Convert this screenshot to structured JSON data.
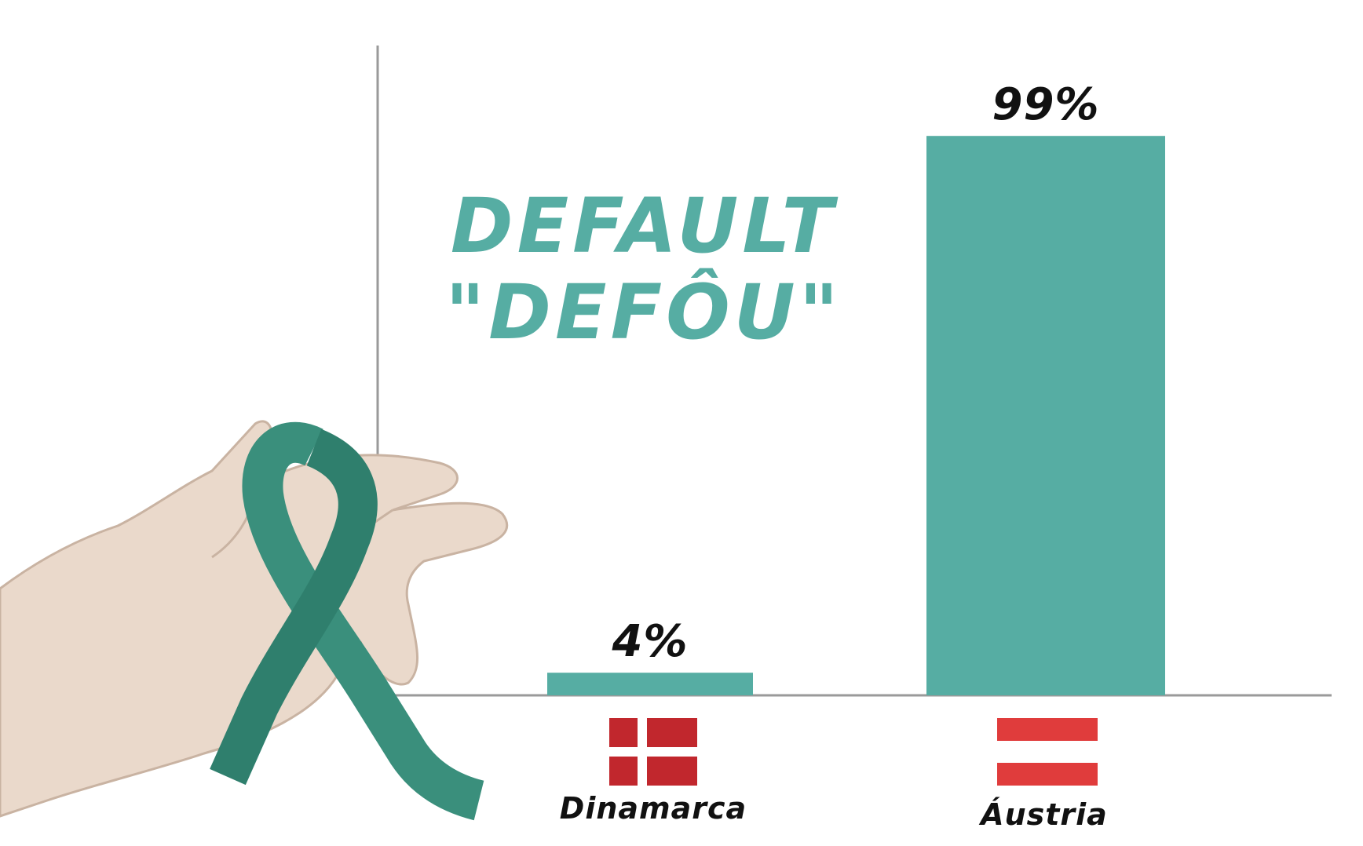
{
  "title_lines": [
    "DEFAULT",
    "\"DEFÔU\""
  ],
  "colors": {
    "accent": "#56ada3",
    "axis": "#9a9a9a",
    "denmark_red": "#c1272d",
    "austria_red": "#e03c3c",
    "ribbon": "#3a8f7c"
  },
  "illustration": "hand-holding-teal-awareness-ribbon",
  "chart_data": {
    "type": "bar",
    "categories": [
      "Dinamarca",
      "Áustria"
    ],
    "values": [
      4,
      99
    ],
    "value_labels": [
      "4%",
      "99%"
    ],
    "unit": "%",
    "ylim": [
      0,
      100
    ],
    "grid": false,
    "category_icons": [
      "flag-denmark-icon",
      "flag-austria-icon"
    ]
  }
}
